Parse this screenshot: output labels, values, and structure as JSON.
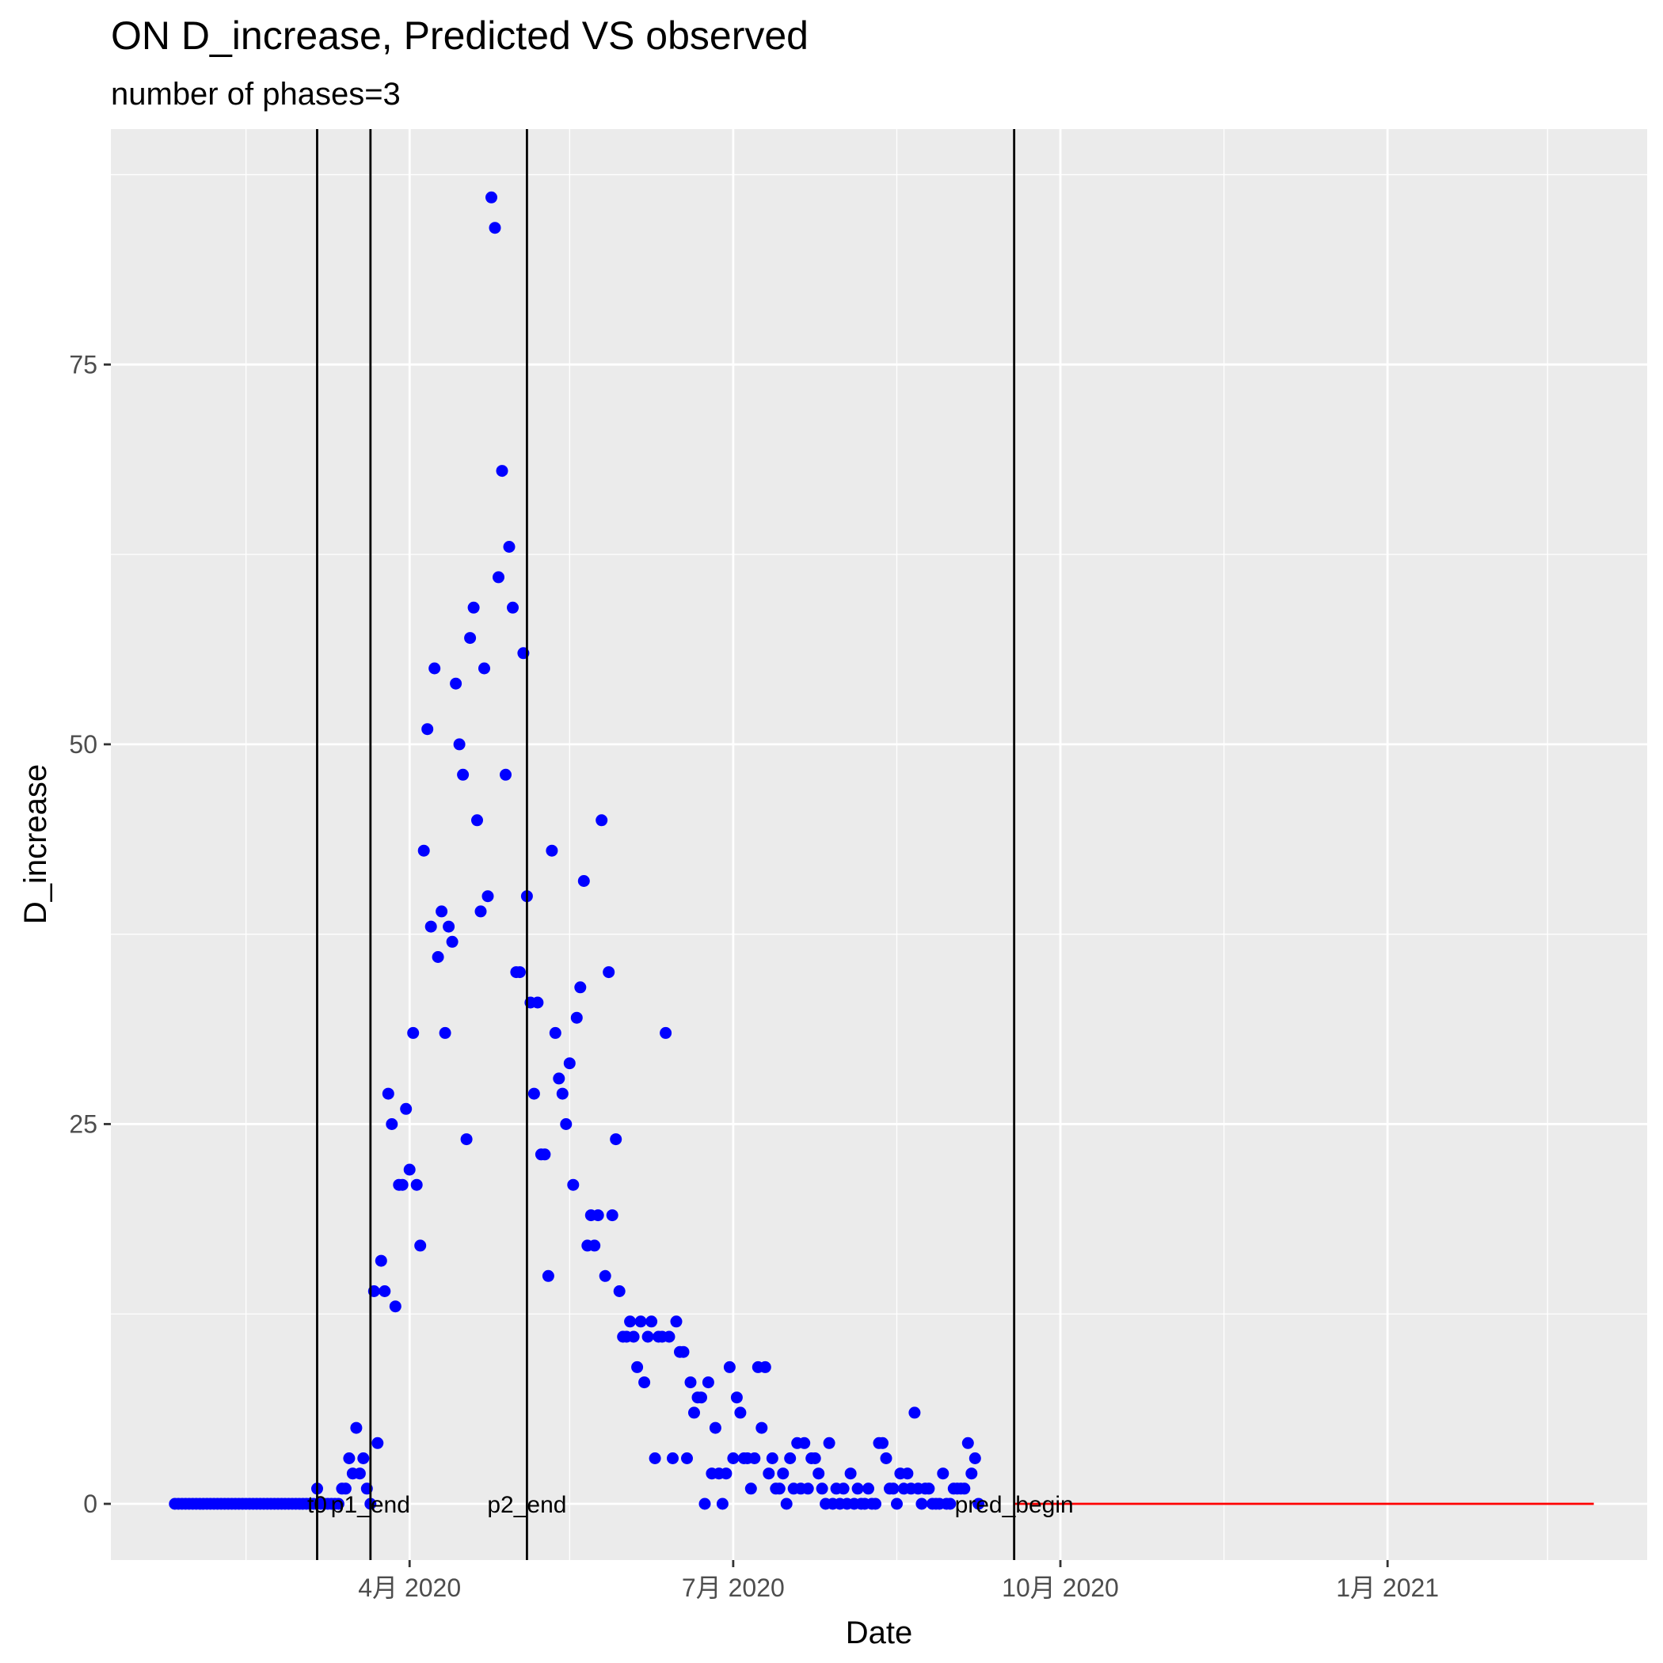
{
  "chart_data": {
    "type": "scatter",
    "title": "ON D_increase, Predicted VS observed",
    "subtitle": "number of phases=3",
    "xlabel": "Date",
    "ylabel": "D_increase",
    "xlim": [
      "2020-01-08",
      "2021-03-15"
    ],
    "ylim": [
      -3.7,
      90.5
    ],
    "x_ticks": [
      {
        "date": "2020-04-01",
        "label": "4月 2020"
      },
      {
        "date": "2020-07-01",
        "label": "7月 2020"
      },
      {
        "date": "2020-10-01",
        "label": "10月 2020"
      },
      {
        "date": "2021-01-01",
        "label": "1月 2021"
      }
    ],
    "x_minor_ticks": [
      "2020-02-15",
      "2020-05-16",
      "2020-08-16",
      "2020-11-16",
      "2021-02-15"
    ],
    "y_ticks": [
      0,
      25,
      50,
      75
    ],
    "y_minor_ticks": [
      12.5,
      37.5,
      62.5,
      87.5
    ],
    "grid": true,
    "colors": {
      "panel": "#ebebeb",
      "grid": "#ffffff",
      "observed": "#0000ff",
      "predicted": "#ff0000",
      "vline": "#000000"
    },
    "vlines": [
      {
        "date": "2020-03-06",
        "label": "t0"
      },
      {
        "date": "2020-03-21",
        "label": "p1_end"
      },
      {
        "date": "2020-05-04",
        "label": "p2_end"
      },
      {
        "date": "2020-09-18",
        "label": "pred_begin"
      }
    ],
    "series": [
      {
        "kind": "points",
        "start_date": "2020-01-26",
        "values": [
          0,
          0,
          0,
          0,
          0,
          0,
          0,
          0,
          0,
          0,
          0,
          0,
          0,
          0,
          0,
          0,
          0,
          0,
          0,
          0,
          0,
          0,
          0,
          0,
          0,
          0,
          0,
          0,
          0,
          0,
          0,
          0,
          0,
          0,
          0,
          0,
          0,
          0,
          0,
          0,
          1,
          0,
          0,
          0,
          0,
          0,
          0,
          1,
          1,
          3,
          2,
          5,
          2,
          3,
          1,
          0,
          14,
          4,
          16,
          14,
          27,
          25,
          13,
          21,
          21,
          26,
          22,
          31,
          21,
          17,
          43,
          51,
          38,
          55,
          36,
          39,
          31,
          38,
          37,
          54,
          50,
          48,
          24,
          57,
          59,
          45,
          39,
          55,
          40,
          86,
          84,
          61,
          68,
          48,
          63,
          59,
          35,
          35,
          56,
          40,
          33,
          27,
          33,
          23,
          23,
          15,
          43,
          31,
          28,
          27,
          25,
          29,
          21,
          32,
          34,
          41,
          17,
          19,
          17,
          19,
          45,
          15,
          35,
          19,
          24,
          14,
          11,
          11,
          12,
          11,
          9,
          12,
          8,
          11,
          12,
          3,
          11,
          11,
          31,
          11,
          3,
          12,
          10,
          10,
          3,
          8,
          6,
          7,
          7,
          0,
          8,
          2,
          5,
          2,
          0,
          2,
          9,
          3,
          7,
          6,
          3,
          3,
          1,
          3,
          9,
          5,
          9,
          2,
          3,
          1,
          1,
          2,
          0,
          3,
          1,
          4,
          1,
          4,
          1,
          3,
          3,
          2,
          1,
          0,
          4,
          0,
          1,
          0,
          1,
          0,
          2,
          0,
          1,
          0,
          0,
          1,
          0,
          0,
          4,
          4,
          3,
          1,
          1,
          0,
          2,
          1,
          2,
          1,
          6,
          1,
          0,
          1,
          1,
          0,
          0,
          0,
          2,
          0,
          0,
          1,
          1,
          1,
          1,
          4,
          2,
          3,
          0
        ]
      },
      {
        "kind": "line",
        "x": [
          "2020-09-18",
          "2021-02-28"
        ],
        "values": [
          0,
          0
        ]
      }
    ]
  }
}
